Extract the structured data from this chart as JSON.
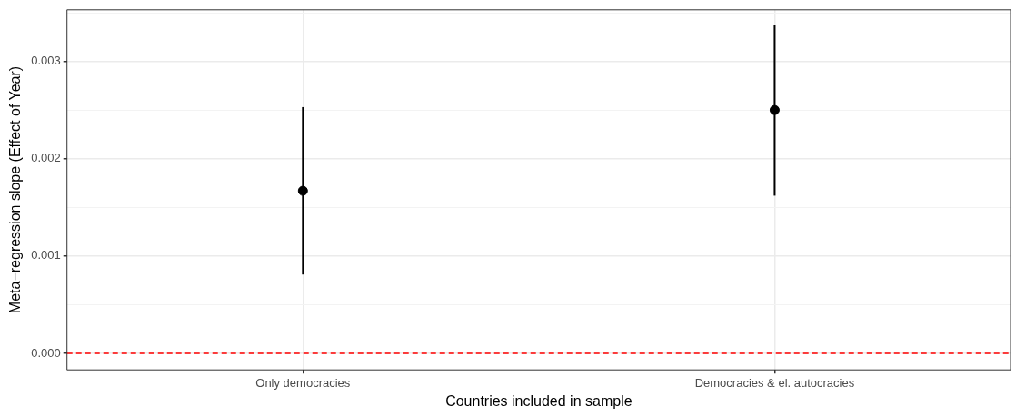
{
  "chart_data": {
    "type": "scatter",
    "xlabel": "Countries included in sample",
    "ylabel": "Meta−regression slope (Effect of Year)",
    "categories": [
      "Only democracies",
      "Democracies & el. autocracies"
    ],
    "values": [
      0.00167,
      0.0025
    ],
    "errors": [
      [
        0.00081,
        0.00253
      ],
      [
        0.00162,
        0.00337
      ]
    ],
    "color": "#000000",
    "marker": "circle",
    "ylim": [
      -0.00017,
      0.00353
    ],
    "yticks": [
      {
        "value": 0,
        "label": "0.000"
      },
      {
        "value": 0.0005,
        "label": null
      },
      {
        "value": 0.001,
        "label": "0.001"
      },
      {
        "value": 0.0015,
        "label": null
      },
      {
        "value": 0.002,
        "label": "0.002"
      },
      {
        "value": 0.0025,
        "label": null
      },
      {
        "value": 0.003,
        "label": "0.003"
      },
      {
        "value": 0.0035,
        "label": null
      }
    ],
    "ref_lines": [
      {
        "axis": "y",
        "value": 0,
        "color": "#ff0000",
        "line_style": "dashed"
      }
    ],
    "grid": true,
    "legend": false
  }
}
